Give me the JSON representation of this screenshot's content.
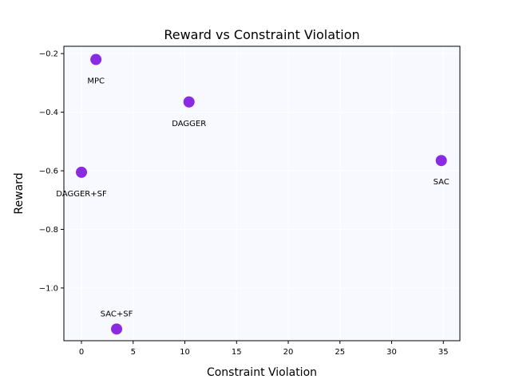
{
  "chart_data": {
    "type": "scatter",
    "title": "Reward vs Constraint Violation",
    "xlabel": "Constraint Violation",
    "ylabel": "Reward",
    "xlim": [
      -1.7,
      36.6
    ],
    "ylim": [
      -1.18,
      -0.175
    ],
    "xticks": [
      0,
      5,
      10,
      15,
      20,
      25,
      30,
      35
    ],
    "yticks": [
      -1.0,
      -0.8,
      -0.6,
      -0.4,
      -0.2
    ],
    "ytick_labels": [
      "−1.0",
      "−0.8",
      "−0.6",
      "−0.4",
      "−0.2"
    ],
    "grid": true,
    "point_color": "#8A2BE2",
    "plot_background": "#F8F8FF",
    "points": [
      {
        "label": "MPC",
        "x": 1.4,
        "y": -0.22,
        "label_pos": "below"
      },
      {
        "label": "DAGGER",
        "x": 10.4,
        "y": -0.365,
        "label_pos": "below"
      },
      {
        "label": "DAGGER+SF",
        "x": 0.0,
        "y": -0.605,
        "label_pos": "below"
      },
      {
        "label": "SAC",
        "x": 34.8,
        "y": -0.565,
        "label_pos": "below"
      },
      {
        "label": "SAC+SF",
        "x": 3.4,
        "y": -1.14,
        "label_pos": "above"
      }
    ]
  }
}
